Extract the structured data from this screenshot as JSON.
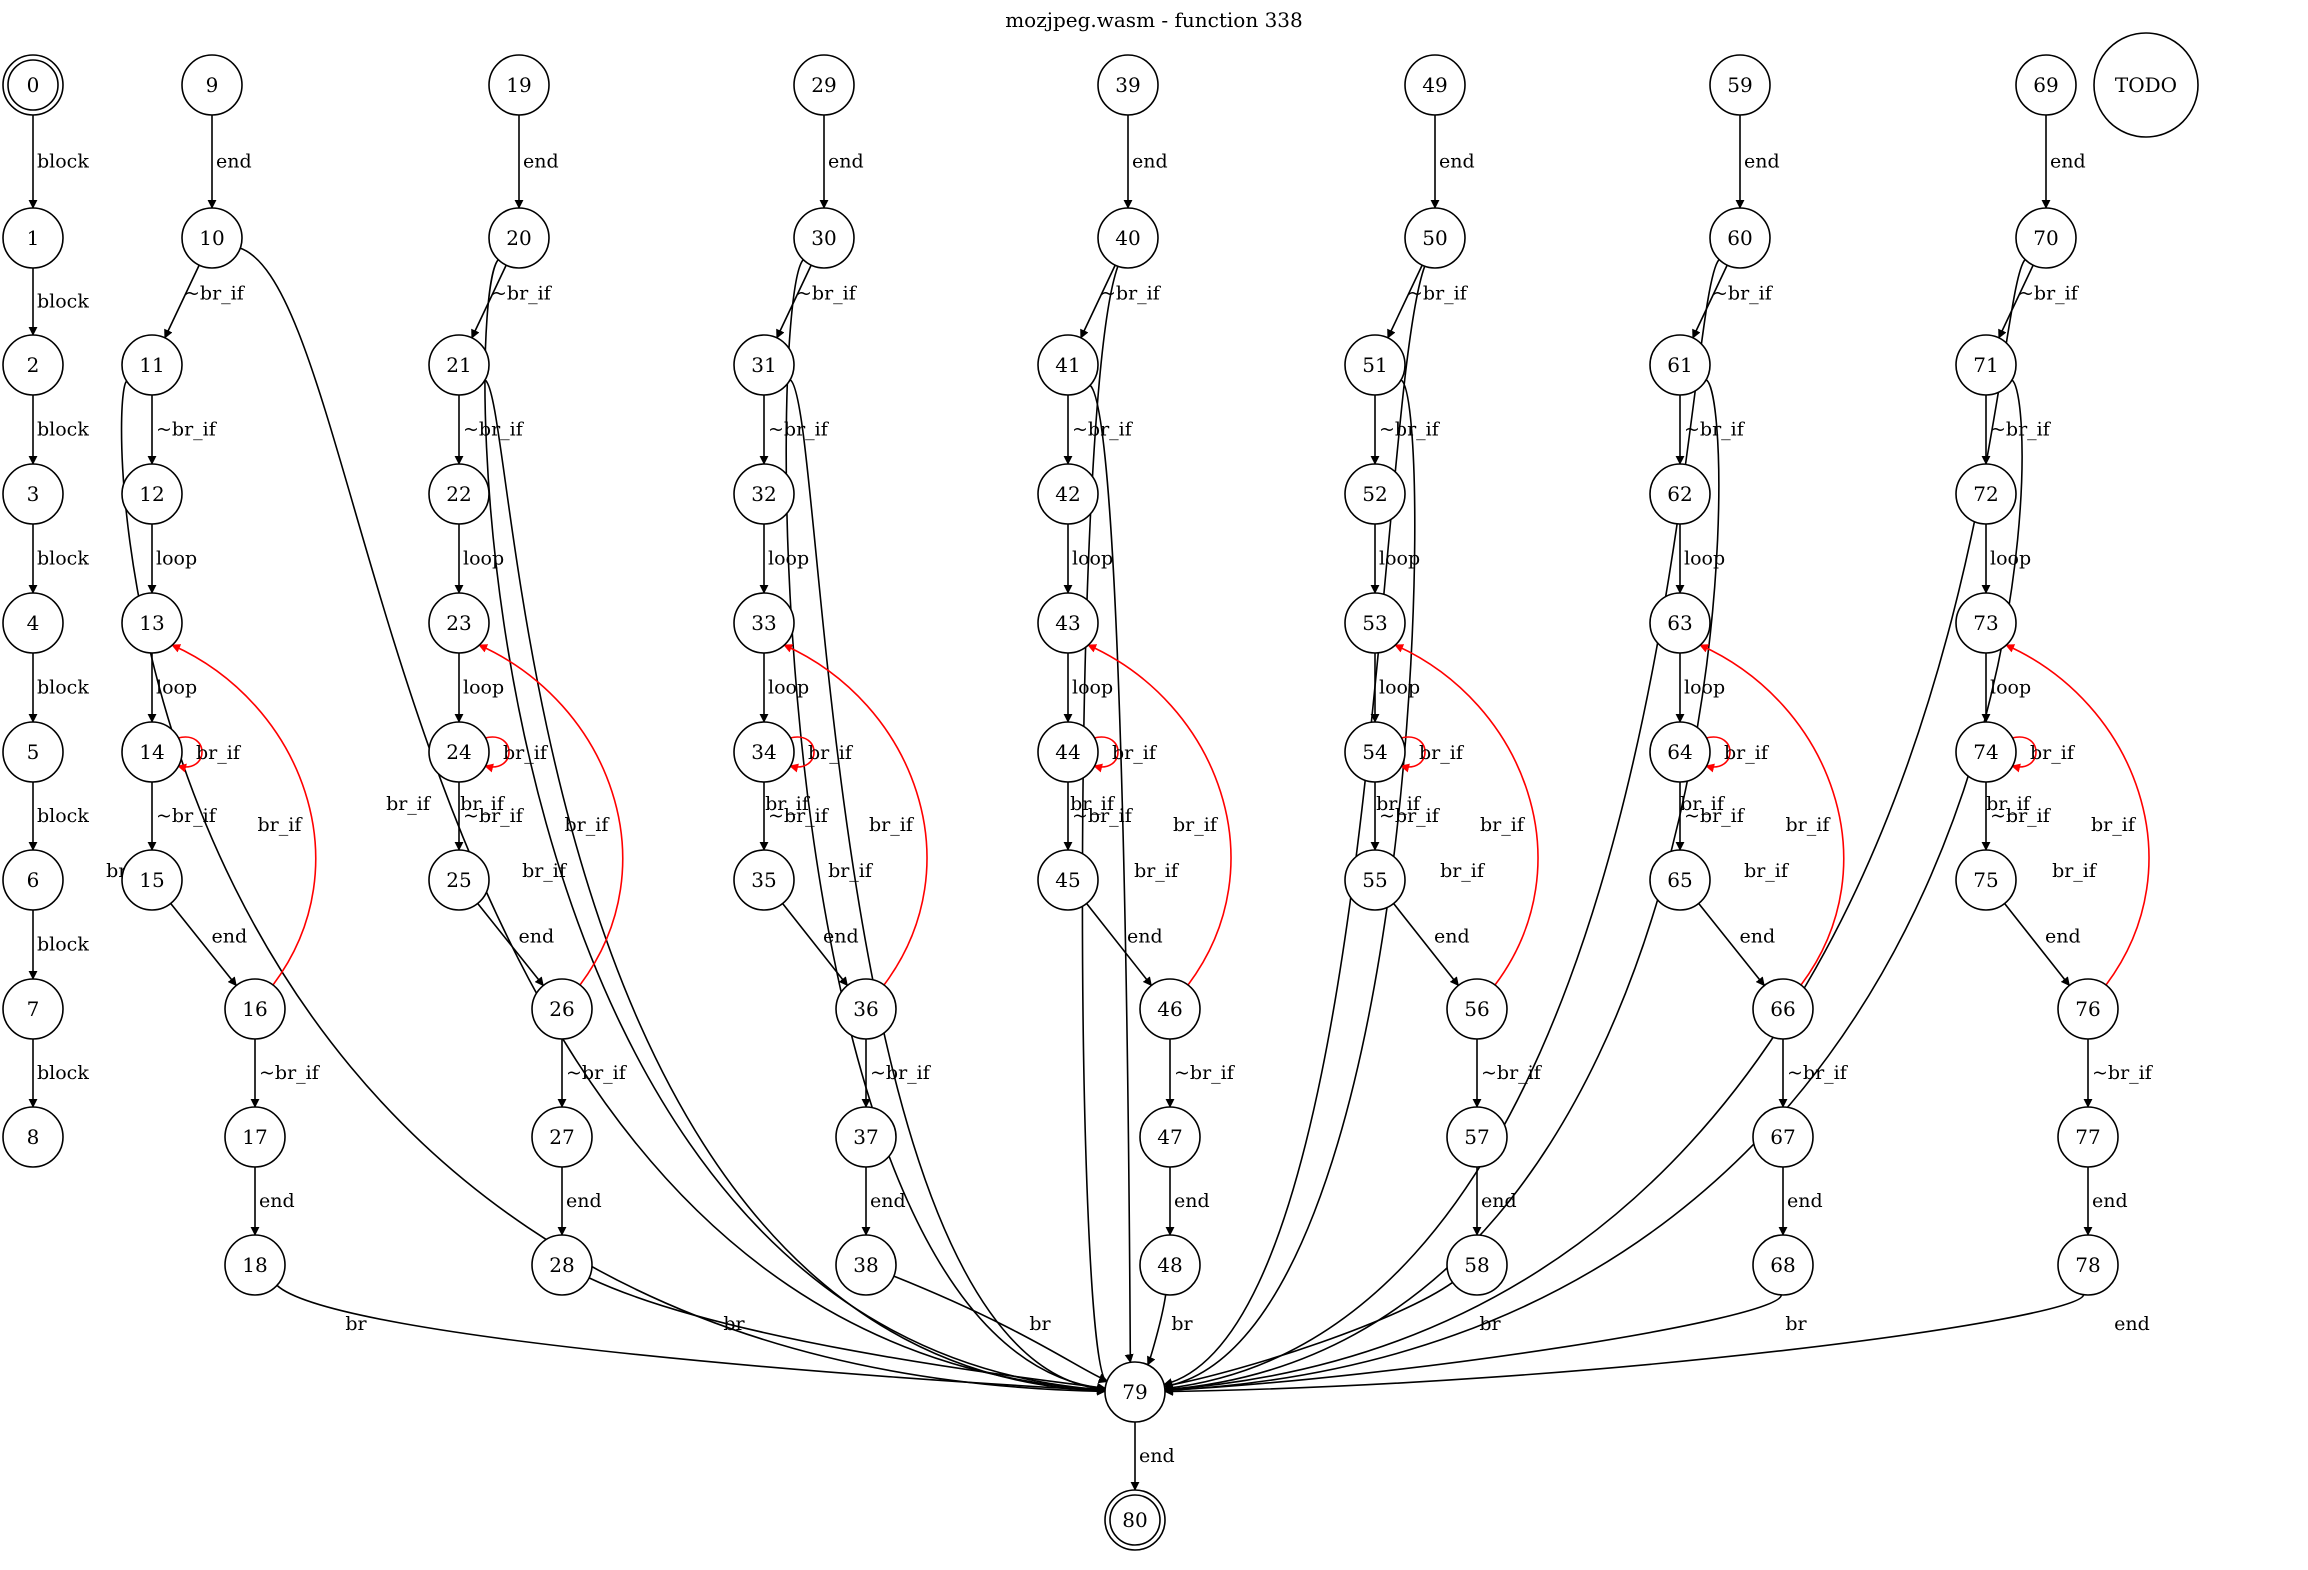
{
  "diagram": {
    "title": "mozjpeg.wasm - function 338",
    "colors": {
      "normal": "#000000",
      "back_edge": "#ff0000",
      "background": "#ffffff"
    },
    "nodes": [
      {
        "id": "0",
        "kind": "terminal"
      },
      {
        "id": "1"
      },
      {
        "id": "2"
      },
      {
        "id": "3"
      },
      {
        "id": "4"
      },
      {
        "id": "5"
      },
      {
        "id": "6"
      },
      {
        "id": "7"
      },
      {
        "id": "8"
      },
      {
        "id": "9"
      },
      {
        "id": "10"
      },
      {
        "id": "11"
      },
      {
        "id": "12"
      },
      {
        "id": "13"
      },
      {
        "id": "14"
      },
      {
        "id": "15"
      },
      {
        "id": "16"
      },
      {
        "id": "17"
      },
      {
        "id": "18"
      },
      {
        "id": "19"
      },
      {
        "id": "20"
      },
      {
        "id": "21"
      },
      {
        "id": "22"
      },
      {
        "id": "23"
      },
      {
        "id": "24"
      },
      {
        "id": "25"
      },
      {
        "id": "26"
      },
      {
        "id": "27"
      },
      {
        "id": "28"
      },
      {
        "id": "29"
      },
      {
        "id": "30"
      },
      {
        "id": "31"
      },
      {
        "id": "32"
      },
      {
        "id": "33"
      },
      {
        "id": "34"
      },
      {
        "id": "35"
      },
      {
        "id": "36"
      },
      {
        "id": "37"
      },
      {
        "id": "38"
      },
      {
        "id": "39"
      },
      {
        "id": "40"
      },
      {
        "id": "41"
      },
      {
        "id": "42"
      },
      {
        "id": "43"
      },
      {
        "id": "44"
      },
      {
        "id": "45"
      },
      {
        "id": "46"
      },
      {
        "id": "47"
      },
      {
        "id": "48"
      },
      {
        "id": "49"
      },
      {
        "id": "50"
      },
      {
        "id": "51"
      },
      {
        "id": "52"
      },
      {
        "id": "53"
      },
      {
        "id": "54"
      },
      {
        "id": "55"
      },
      {
        "id": "56"
      },
      {
        "id": "57"
      },
      {
        "id": "58"
      },
      {
        "id": "59"
      },
      {
        "id": "60"
      },
      {
        "id": "61"
      },
      {
        "id": "62"
      },
      {
        "id": "63"
      },
      {
        "id": "64"
      },
      {
        "id": "65"
      },
      {
        "id": "66"
      },
      {
        "id": "67"
      },
      {
        "id": "68"
      },
      {
        "id": "69"
      },
      {
        "id": "70"
      },
      {
        "id": "71"
      },
      {
        "id": "72"
      },
      {
        "id": "73"
      },
      {
        "id": "74"
      },
      {
        "id": "75"
      },
      {
        "id": "76"
      },
      {
        "id": "77"
      },
      {
        "id": "78"
      },
      {
        "id": "79"
      },
      {
        "id": "80",
        "kind": "terminal"
      },
      {
        "id": "TODO",
        "kind": "note"
      }
    ],
    "edges": [
      {
        "from": "0",
        "to": "1",
        "label": "block"
      },
      {
        "from": "1",
        "to": "2",
        "label": "block"
      },
      {
        "from": "2",
        "to": "3",
        "label": "block"
      },
      {
        "from": "3",
        "to": "4",
        "label": "block"
      },
      {
        "from": "4",
        "to": "5",
        "label": "block"
      },
      {
        "from": "5",
        "to": "6",
        "label": "block"
      },
      {
        "from": "6",
        "to": "7",
        "label": "block"
      },
      {
        "from": "7",
        "to": "8",
        "label": "block"
      },
      {
        "from": "9",
        "to": "10",
        "label": "end"
      },
      {
        "from": "10",
        "to": "11",
        "label": "~br_if"
      },
      {
        "from": "10",
        "to": "79",
        "label": "br_if"
      },
      {
        "from": "11",
        "to": "12",
        "label": "~br_if"
      },
      {
        "from": "11",
        "to": "79",
        "label": "br_if"
      },
      {
        "from": "12",
        "to": "13",
        "label": "loop"
      },
      {
        "from": "13",
        "to": "14",
        "label": "loop"
      },
      {
        "from": "14",
        "to": "14",
        "label": "br_if",
        "kind": "back"
      },
      {
        "from": "14",
        "to": "15",
        "label": "~br_if"
      },
      {
        "from": "15",
        "to": "16",
        "label": "end"
      },
      {
        "from": "16",
        "to": "13",
        "label": "br_if",
        "kind": "back"
      },
      {
        "from": "16",
        "to": "17",
        "label": "~br_if"
      },
      {
        "from": "17",
        "to": "18",
        "label": "end"
      },
      {
        "from": "18",
        "to": "79",
        "label": "br"
      },
      {
        "from": "19",
        "to": "20",
        "label": "end"
      },
      {
        "from": "20",
        "to": "21",
        "label": "~br_if"
      },
      {
        "from": "20",
        "to": "79",
        "label": "br_if"
      },
      {
        "from": "21",
        "to": "22",
        "label": "~br_if"
      },
      {
        "from": "21",
        "to": "79",
        "label": "br_if"
      },
      {
        "from": "22",
        "to": "23",
        "label": "loop"
      },
      {
        "from": "23",
        "to": "24",
        "label": "loop"
      },
      {
        "from": "24",
        "to": "24",
        "label": "br_if",
        "kind": "back"
      },
      {
        "from": "24",
        "to": "25",
        "label": "~br_if"
      },
      {
        "from": "25",
        "to": "26",
        "label": "end"
      },
      {
        "from": "26",
        "to": "23",
        "label": "br_if",
        "kind": "back"
      },
      {
        "from": "26",
        "to": "27",
        "label": "~br_if"
      },
      {
        "from": "27",
        "to": "28",
        "label": "end"
      },
      {
        "from": "28",
        "to": "79",
        "label": "br"
      },
      {
        "from": "29",
        "to": "30",
        "label": "end"
      },
      {
        "from": "30",
        "to": "31",
        "label": "~br_if"
      },
      {
        "from": "30",
        "to": "79",
        "label": "br_if"
      },
      {
        "from": "31",
        "to": "32",
        "label": "~br_if"
      },
      {
        "from": "31",
        "to": "79",
        "label": "br_if"
      },
      {
        "from": "32",
        "to": "33",
        "label": "loop"
      },
      {
        "from": "33",
        "to": "34",
        "label": "loop"
      },
      {
        "from": "34",
        "to": "34",
        "label": "br_if",
        "kind": "back"
      },
      {
        "from": "34",
        "to": "35",
        "label": "~br_if"
      },
      {
        "from": "35",
        "to": "36",
        "label": "end"
      },
      {
        "from": "36",
        "to": "33",
        "label": "br_if",
        "kind": "back"
      },
      {
        "from": "36",
        "to": "37",
        "label": "~br_if"
      },
      {
        "from": "37",
        "to": "38",
        "label": "end"
      },
      {
        "from": "38",
        "to": "79",
        "label": "br"
      },
      {
        "from": "39",
        "to": "40",
        "label": "end"
      },
      {
        "from": "40",
        "to": "41",
        "label": "~br_if"
      },
      {
        "from": "40",
        "to": "79",
        "label": "br_if"
      },
      {
        "from": "41",
        "to": "42",
        "label": "~br_if"
      },
      {
        "from": "41",
        "to": "79",
        "label": "br_if"
      },
      {
        "from": "42",
        "to": "43",
        "label": "loop"
      },
      {
        "from": "43",
        "to": "44",
        "label": "loop"
      },
      {
        "from": "44",
        "to": "44",
        "label": "br_if",
        "kind": "back"
      },
      {
        "from": "44",
        "to": "45",
        "label": "~br_if"
      },
      {
        "from": "45",
        "to": "46",
        "label": "end"
      },
      {
        "from": "46",
        "to": "43",
        "label": "br_if",
        "kind": "back"
      },
      {
        "from": "46",
        "to": "47",
        "label": "~br_if"
      },
      {
        "from": "47",
        "to": "48",
        "label": "end"
      },
      {
        "from": "48",
        "to": "79",
        "label": "br"
      },
      {
        "from": "49",
        "to": "50",
        "label": "end"
      },
      {
        "from": "50",
        "to": "51",
        "label": "~br_if"
      },
      {
        "from": "50",
        "to": "79",
        "label": "br_if"
      },
      {
        "from": "51",
        "to": "52",
        "label": "~br_if"
      },
      {
        "from": "51",
        "to": "79",
        "label": "br_if"
      },
      {
        "from": "52",
        "to": "53",
        "label": "loop"
      },
      {
        "from": "53",
        "to": "54",
        "label": "loop"
      },
      {
        "from": "54",
        "to": "54",
        "label": "br_if",
        "kind": "back"
      },
      {
        "from": "54",
        "to": "55",
        "label": "~br_if"
      },
      {
        "from": "55",
        "to": "56",
        "label": "end"
      },
      {
        "from": "56",
        "to": "53",
        "label": "br_if",
        "kind": "back"
      },
      {
        "from": "56",
        "to": "57",
        "label": "~br_if"
      },
      {
        "from": "57",
        "to": "58",
        "label": "end"
      },
      {
        "from": "58",
        "to": "79",
        "label": "br"
      },
      {
        "from": "59",
        "to": "60",
        "label": "end"
      },
      {
        "from": "60",
        "to": "61",
        "label": "~br_if"
      },
      {
        "from": "60",
        "to": "79",
        "label": "br_if"
      },
      {
        "from": "61",
        "to": "62",
        "label": "~br_if"
      },
      {
        "from": "61",
        "to": "79",
        "label": "br_if"
      },
      {
        "from": "62",
        "to": "63",
        "label": "loop"
      },
      {
        "from": "63",
        "to": "64",
        "label": "loop"
      },
      {
        "from": "64",
        "to": "64",
        "label": "br_if",
        "kind": "back"
      },
      {
        "from": "64",
        "to": "65",
        "label": "~br_if"
      },
      {
        "from": "65",
        "to": "66",
        "label": "end"
      },
      {
        "from": "66",
        "to": "63",
        "label": "br_if",
        "kind": "back"
      },
      {
        "from": "66",
        "to": "67",
        "label": "~br_if"
      },
      {
        "from": "67",
        "to": "68",
        "label": "end"
      },
      {
        "from": "68",
        "to": "79",
        "label": "br"
      },
      {
        "from": "69",
        "to": "70",
        "label": "end"
      },
      {
        "from": "70",
        "to": "71",
        "label": "~br_if"
      },
      {
        "from": "70",
        "to": "79",
        "label": "br_if"
      },
      {
        "from": "71",
        "to": "72",
        "label": "~br_if"
      },
      {
        "from": "71",
        "to": "79",
        "label": "br_if"
      },
      {
        "from": "72",
        "to": "73",
        "label": "loop"
      },
      {
        "from": "73",
        "to": "74",
        "label": "loop"
      },
      {
        "from": "74",
        "to": "74",
        "label": "br_if",
        "kind": "back"
      },
      {
        "from": "74",
        "to": "75",
        "label": "~br_if"
      },
      {
        "from": "75",
        "to": "76",
        "label": "end"
      },
      {
        "from": "76",
        "to": "73",
        "label": "br_if",
        "kind": "back"
      },
      {
        "from": "76",
        "to": "77",
        "label": "~br_if"
      },
      {
        "from": "77",
        "to": "78",
        "label": "end"
      },
      {
        "from": "78",
        "to": "79",
        "label": "end"
      },
      {
        "from": "79",
        "to": "80",
        "label": "end"
      }
    ]
  }
}
